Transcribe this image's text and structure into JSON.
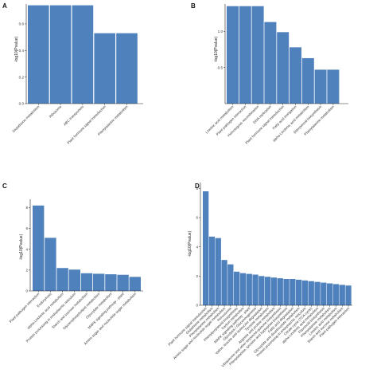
{
  "colors": {
    "bar": "#4f81bd",
    "axis": "#222222"
  },
  "chart_data": [
    {
      "panel": "A",
      "type": "bar",
      "ylabel": "-log10(Pvalue)",
      "ylim": [
        0,
        0.75
      ],
      "yticks": [
        "0.0",
        "0.2",
        "0.4",
        "0.6"
      ],
      "ytick_values": [
        0,
        0.2,
        0.4,
        0.6
      ],
      "categories": [
        "Glutathione metabolism",
        "Ribosome",
        "ABC transporters",
        "Plant hormone signal transduction",
        "Phenylalanine metabolism"
      ],
      "values": [
        0.74,
        0.74,
        0.74,
        0.53,
        0.53
      ]
    },
    {
      "panel": "B",
      "type": "bar",
      "ylabel": "-log10(Pvalue)",
      "ylim": [
        0,
        1.38
      ],
      "yticks": [
        "0.5",
        "1.0"
      ],
      "ytick_values": [
        0.5,
        1.0
      ],
      "categories": [
        "Linoleic acid metabolism",
        "Plant-pathogen interaction",
        "Homologous recombination",
        "DNA replication",
        "Plant hormone signal transduction",
        "Fatty acid elongation",
        "alpha-Linolenic acid metabolism",
        "Diterpenoid biosynthesis",
        "Phenylalanine metabolism"
      ],
      "values": [
        1.35,
        1.35,
        1.35,
        1.13,
        0.99,
        0.78,
        0.63,
        0.47,
        0.47
      ]
    },
    {
      "panel": "C",
      "type": "bar",
      "ylabel": "-log10(Pvalue)",
      "ylim": [
        0,
        8.8
      ],
      "yticks": [
        "0",
        "2",
        "4",
        "6",
        "8"
      ],
      "ytick_values": [
        0,
        2,
        4,
        6,
        8
      ],
      "categories": [
        "Plant-pathogen interaction",
        "Endocytosis",
        "alpha-Linolenic acid metabolism",
        "Protein processing in endoplasmic reticulum",
        "Starch and sucrose metabolism",
        "Glycerophospholipid metabolism",
        "Glyoxylate metabolism",
        "MAPK signaling pathway - plant",
        "Amino sugar and nucleotide sugar metabolism"
      ],
      "values": [
        8.2,
        5.1,
        2.2,
        2.05,
        1.7,
        1.65,
        1.6,
        1.55,
        1.35
      ]
    },
    {
      "panel": "D",
      "type": "bar",
      "ylabel": "-log10(Pvalue)",
      "ylim": [
        0,
        8.4
      ],
      "yticks": [
        "0",
        "2",
        "4",
        "6",
        "8"
      ],
      "ytick_values": [
        0,
        2,
        4,
        6,
        8
      ],
      "categories": [
        "Plant hormone signal transduction",
        "Glutathione metabolism",
        "Phenylalanine metabolism",
        "Amino sugar and nucleotide sugar metabolism",
        "Peroxisome",
        "Phenylpropanoid biosynthesis",
        "Carbon metabolism",
        "MAPK signaling pathway - plant",
        "Glycolysis / Gluconeogenesis",
        "Valine, leucine and isoleucine degradation",
        "Tyrosine metabolism",
        "Arginine and proline metabolism",
        "Ubiquinone and other terpenoid-quinone biosynthesis",
        "Phenylalanine, tyrosine and tryptophan biosynthesis",
        "Fatty acid degradation",
        "Glyoxylate and dicarboxylate metabolism",
        "Protein processing in endoplasmic reticulum",
        "Citrate cycle (TCA cycle)",
        "alpha-Linolenic acid metabolism",
        "Flavonoid biosynthesis",
        "Phenylalanine metabolism",
        "Linoleic acid metabolism",
        "Starch and sucrose metabolism",
        "Plant-pathogen interaction"
      ],
      "values": [
        7.8,
        4.7,
        4.6,
        3.1,
        2.8,
        2.3,
        2.2,
        2.15,
        2.1,
        2.0,
        1.95,
        1.9,
        1.85,
        1.8,
        1.8,
        1.75,
        1.7,
        1.65,
        1.6,
        1.55,
        1.5,
        1.45,
        1.4,
        1.35
      ]
    }
  ]
}
